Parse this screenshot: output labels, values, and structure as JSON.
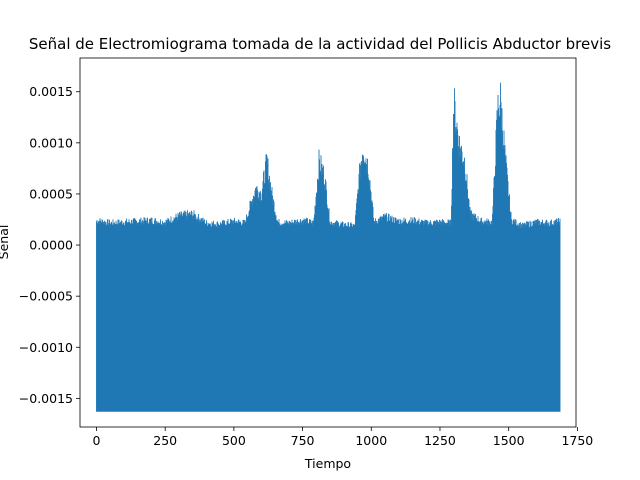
{
  "chart_data": {
    "type": "line",
    "title": "Señal de Electromiograma tomada de la actividad del Pollicis Abductor brevis",
    "xlabel": "Tiempo",
    "ylabel": "Señal",
    "xlim": [
      -60,
      1745
    ],
    "ylim": [
      -0.00178,
      0.00183
    ],
    "xticks": [
      0,
      250,
      500,
      750,
      1000,
      1250,
      1500,
      1750
    ],
    "xtick_labels": [
      "0",
      "250",
      "500",
      "750",
      "1000",
      "1250",
      "1500",
      "1750"
    ],
    "yticks": [
      -0.0015,
      -0.001,
      -0.0005,
      0.0,
      0.0005,
      0.001,
      0.0015
    ],
    "ytick_labels": [
      "−0.0015",
      "−0.0010",
      "−0.0005",
      "0.0000",
      "0.0005",
      "0.0010",
      "0.0015"
    ],
    "grid": false,
    "series": [
      {
        "color": "#1f77b4",
        "x_range": [
          0,
          1688
        ],
        "baseline_min": -0.00163,
        "envelope_max": [
          [
            0,
            0.00028
          ],
          [
            50,
            0.00025
          ],
          [
            100,
            0.00026
          ],
          [
            150,
            0.00027
          ],
          [
            200,
            0.00028
          ],
          [
            250,
            0.00026
          ],
          [
            300,
            0.00033
          ],
          [
            350,
            0.00035
          ],
          [
            400,
            0.00025
          ],
          [
            450,
            0.00024
          ],
          [
            500,
            0.00027
          ],
          [
            540,
            0.00025
          ],
          [
            560,
            0.00045
          ],
          [
            580,
            0.00065
          ],
          [
            600,
            0.00058
          ],
          [
            620,
            0.00095
          ],
          [
            640,
            0.00055
          ],
          [
            660,
            0.00026
          ],
          [
            700,
            0.00025
          ],
          [
            750,
            0.00028
          ],
          [
            790,
            0.00025
          ],
          [
            810,
            0.00095
          ],
          [
            830,
            0.00078
          ],
          [
            850,
            0.00026
          ],
          [
            900,
            0.00023
          ],
          [
            940,
            0.00022
          ],
          [
            960,
            0.0009
          ],
          [
            970,
            0.00112
          ],
          [
            990,
            0.00088
          ],
          [
            1010,
            0.00026
          ],
          [
            1050,
            0.00032
          ],
          [
            1100,
            0.00027
          ],
          [
            1150,
            0.00028
          ],
          [
            1200,
            0.00025
          ],
          [
            1250,
            0.00026
          ],
          [
            1290,
            0.00025
          ],
          [
            1300,
            0.00162
          ],
          [
            1320,
            0.00115
          ],
          [
            1340,
            0.00095
          ],
          [
            1360,
            0.00035
          ],
          [
            1400,
            0.00027
          ],
          [
            1440,
            0.00026
          ],
          [
            1460,
            0.00155
          ],
          [
            1470,
            0.00165
          ],
          [
            1490,
            0.0009
          ],
          [
            1510,
            0.00028
          ],
          [
            1550,
            0.00022
          ],
          [
            1600,
            0.00026
          ],
          [
            1650,
            0.00025
          ],
          [
            1688,
            0.00027
          ]
        ]
      }
    ]
  }
}
